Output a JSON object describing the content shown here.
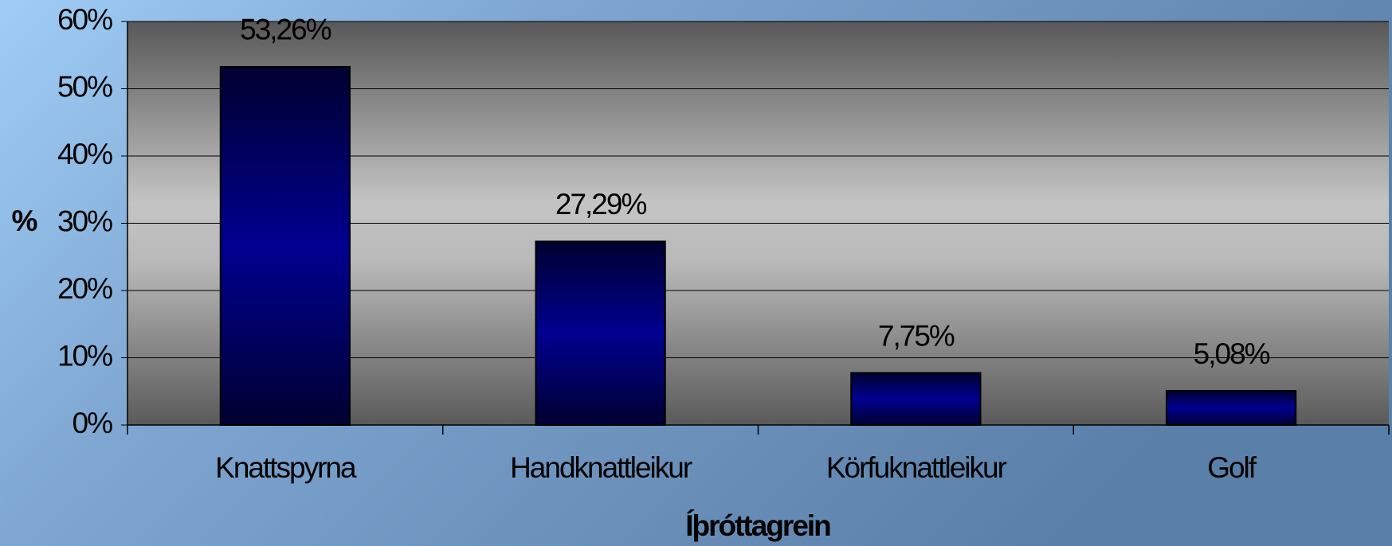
{
  "chart_data": {
    "type": "bar",
    "x_label": "Íþróttagrein",
    "y_label": "%",
    "categories": [
      "Knattspyrna",
      "Handknattleikur",
      "Körfuknattleikur",
      "Golf"
    ],
    "values": [
      53.26,
      27.29,
      7.75,
      5.08
    ],
    "value_labels": [
      "53,26%",
      "27,29%",
      "7,75%",
      "5,08%"
    ],
    "color": "#000080",
    "ylim": [
      0,
      60
    ],
    "yticks": [
      {
        "value": 0,
        "label": "0%"
      },
      {
        "value": 10,
        "label": "10%"
      },
      {
        "value": 20,
        "label": "20%"
      },
      {
        "value": 30,
        "label": "30%"
      },
      {
        "value": 40,
        "label": "40%"
      },
      {
        "value": 50,
        "label": "50%"
      },
      {
        "value": 60,
        "label": "60%"
      }
    ],
    "grid": true
  }
}
